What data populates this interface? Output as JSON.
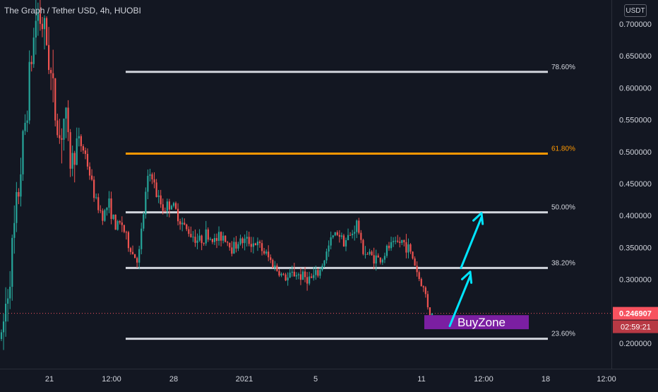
{
  "header": {
    "title": "The Graph / Tether USD, 4h, HUOBI",
    "unit_badge": "USDT"
  },
  "chart_data": {
    "type": "candlestick",
    "symbol": "The Graph / Tether USD",
    "interval": "4h",
    "exchange": "HUOBI",
    "price_axis": {
      "ticks": [
        "0.700000",
        "0.650000",
        "0.600000",
        "0.550000",
        "0.500000",
        "0.450000",
        "0.400000",
        "0.350000",
        "0.300000",
        "0.250000",
        "0.200000"
      ],
      "range": [
        0.18,
        0.72
      ]
    },
    "time_axis": {
      "ticks": [
        "21",
        "12:00",
        "28",
        "2021",
        "5",
        "11",
        "12:00",
        "18",
        "12:00"
      ]
    },
    "current_price": {
      "label": "0.246907",
      "value": 0.246907,
      "color": "#f7525f"
    },
    "countdown": {
      "label": "02:59:21"
    },
    "fib_levels": [
      {
        "label": "78.60%",
        "price": 0.625,
        "color": "#d1d4dc"
      },
      {
        "label": "61.80%",
        "price": 0.497,
        "color": "#ff9800"
      },
      {
        "label": "50.00%",
        "price": 0.405,
        "color": "#d1d4dc"
      },
      {
        "label": "38.20%",
        "price": 0.318,
        "color": "#d1d4dc"
      },
      {
        "label": "23.60%",
        "price": 0.207,
        "color": "#d1d4dc"
      }
    ],
    "annotation": {
      "label": "BuyZone",
      "color": "#7b1fa2",
      "price_top": 0.244,
      "price_bottom": 0.222
    },
    "arrows": [
      {
        "from_price": 0.227,
        "to_price": 0.312,
        "color": "#00e5ff"
      },
      {
        "from_price": 0.318,
        "to_price": 0.404,
        "color": "#00e5ff"
      }
    ],
    "colors": {
      "up": "#26a69a",
      "down": "#ef5350",
      "background": "#131722",
      "axis_text": "#d1d4dc"
    },
    "candle_path": [
      [
        0,
        0.19
      ],
      [
        6,
        0.24
      ],
      [
        18,
        0.35
      ],
      [
        30,
        0.48
      ],
      [
        42,
        0.62
      ],
      [
        52,
        0.72
      ],
      [
        60,
        0.7
      ],
      [
        68,
        0.66
      ],
      [
        76,
        0.58
      ],
      [
        84,
        0.52
      ],
      [
        92,
        0.56
      ],
      [
        100,
        0.48
      ],
      [
        110,
        0.52
      ],
      [
        120,
        0.5
      ],
      [
        128,
        0.46
      ],
      [
        136,
        0.42
      ],
      [
        146,
        0.4
      ],
      [
        154,
        0.42
      ],
      [
        164,
        0.38
      ],
      [
        172,
        0.39
      ],
      [
        180,
        0.36
      ],
      [
        188,
        0.34
      ],
      [
        196,
        0.33
      ],
      [
        202,
        0.39
      ],
      [
        208,
        0.45
      ],
      [
        214,
        0.47
      ],
      [
        222,
        0.43
      ],
      [
        232,
        0.41
      ],
      [
        242,
        0.42
      ],
      [
        252,
        0.4
      ],
      [
        262,
        0.38
      ],
      [
        272,
        0.37
      ],
      [
        282,
        0.36
      ],
      [
        292,
        0.37
      ],
      [
        304,
        0.36
      ],
      [
        316,
        0.37
      ],
      [
        328,
        0.35
      ],
      [
        340,
        0.36
      ],
      [
        352,
        0.36
      ],
      [
        364,
        0.355
      ],
      [
        376,
        0.34
      ],
      [
        386,
        0.325
      ],
      [
        396,
        0.31
      ],
      [
        406,
        0.3
      ],
      [
        416,
        0.31
      ],
      [
        428,
        0.305
      ],
      [
        440,
        0.3
      ],
      [
        452,
        0.31
      ],
      [
        462,
        0.34
      ],
      [
        470,
        0.365
      ],
      [
        478,
        0.375
      ],
      [
        488,
        0.36
      ],
      [
        498,
        0.37
      ],
      [
        506,
        0.39
      ],
      [
        512,
        0.35
      ],
      [
        520,
        0.34
      ],
      [
        530,
        0.335
      ],
      [
        540,
        0.33
      ],
      [
        550,
        0.35
      ],
      [
        560,
        0.355
      ],
      [
        570,
        0.36
      ],
      [
        578,
        0.35
      ],
      [
        586,
        0.33
      ],
      [
        594,
        0.3
      ],
      [
        602,
        0.28
      ],
      [
        608,
        0.25
      ],
      [
        612,
        0.244
      ]
    ]
  }
}
